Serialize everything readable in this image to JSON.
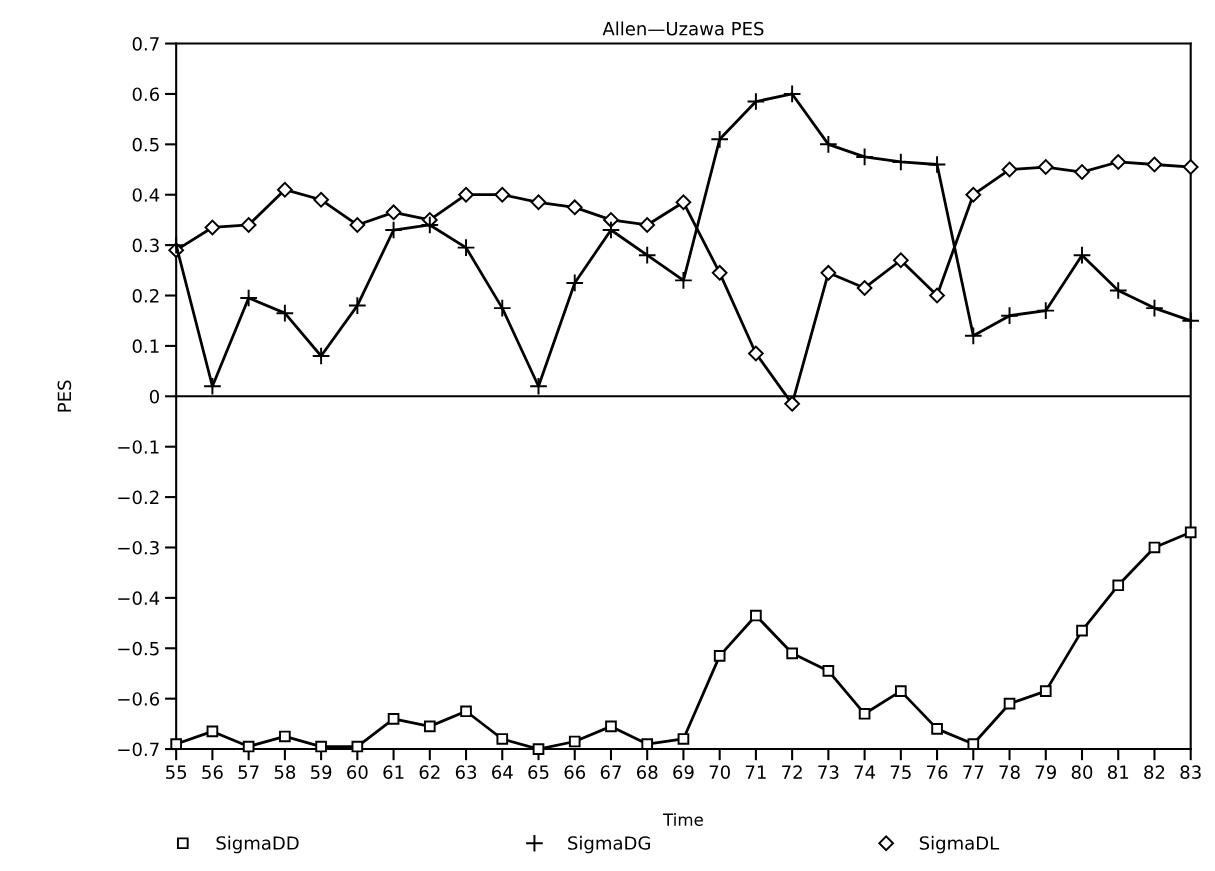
{
  "chart_data": {
    "type": "line",
    "title": "Allen—Uzawa PES",
    "xlabel": "Time",
    "ylabel": "PES",
    "categories": [
      "55",
      "56",
      "57",
      "58",
      "59",
      "60",
      "61",
      "62",
      "63",
      "64",
      "65",
      "66",
      "67",
      "68",
      "69",
      "70",
      "71",
      "72",
      "73",
      "74",
      "75",
      "76",
      "77",
      "78",
      "79",
      "80",
      "81",
      "82",
      "83"
    ],
    "series": [
      {
        "name": "SigmaDD",
        "color": "#000000",
        "marker": "square",
        "values": [
          -0.69,
          -0.665,
          -0.695,
          -0.675,
          -0.695,
          -0.695,
          -0.64,
          -0.655,
          -0.625,
          -0.68,
          -0.7,
          -0.685,
          -0.655,
          -0.69,
          -0.68,
          -0.515,
          -0.435,
          -0.51,
          -0.545,
          -0.63,
          -0.585,
          -0.66,
          -0.69,
          -0.61,
          -0.585,
          -0.465,
          -0.375,
          -0.3,
          -0.27
        ]
      },
      {
        "name": "SigmaDG",
        "color": "#000000",
        "marker": "cross",
        "values": [
          0.3,
          0.02,
          0.195,
          0.165,
          0.08,
          0.18,
          0.33,
          0.34,
          0.295,
          0.175,
          0.02,
          0.225,
          0.33,
          0.28,
          0.23,
          0.51,
          0.585,
          0.6,
          0.5,
          0.475,
          0.465,
          0.46,
          0.12,
          0.16,
          0.17,
          0.28,
          0.21,
          0.175,
          0.15
        ]
      },
      {
        "name": "SigmaDL",
        "color": "#000000",
        "marker": "diamond",
        "values": [
          0.29,
          0.335,
          0.34,
          0.41,
          0.39,
          0.34,
          0.365,
          0.35,
          0.4,
          0.4,
          0.385,
          0.375,
          0.35,
          0.34,
          0.385,
          0.245,
          0.085,
          -0.015,
          0.245,
          0.215,
          0.27,
          0.2,
          0.4,
          0.45,
          0.455,
          0.445,
          0.465,
          0.46,
          0.455
        ]
      }
    ],
    "ylim": [
      -0.7,
      0.7
    ],
    "yticks": [
      0.7,
      0.6,
      0.5,
      0.4,
      0.3,
      0.2,
      0.1,
      0,
      -0.1,
      -0.2,
      -0.3,
      -0.4,
      -0.5,
      -0.6,
      -0.7
    ],
    "ref_lines": [
      {
        "axis": "y",
        "value": 0,
        "color": "#000000"
      }
    ],
    "grid": false,
    "legend": "bottom",
    "line_style": "solid"
  }
}
